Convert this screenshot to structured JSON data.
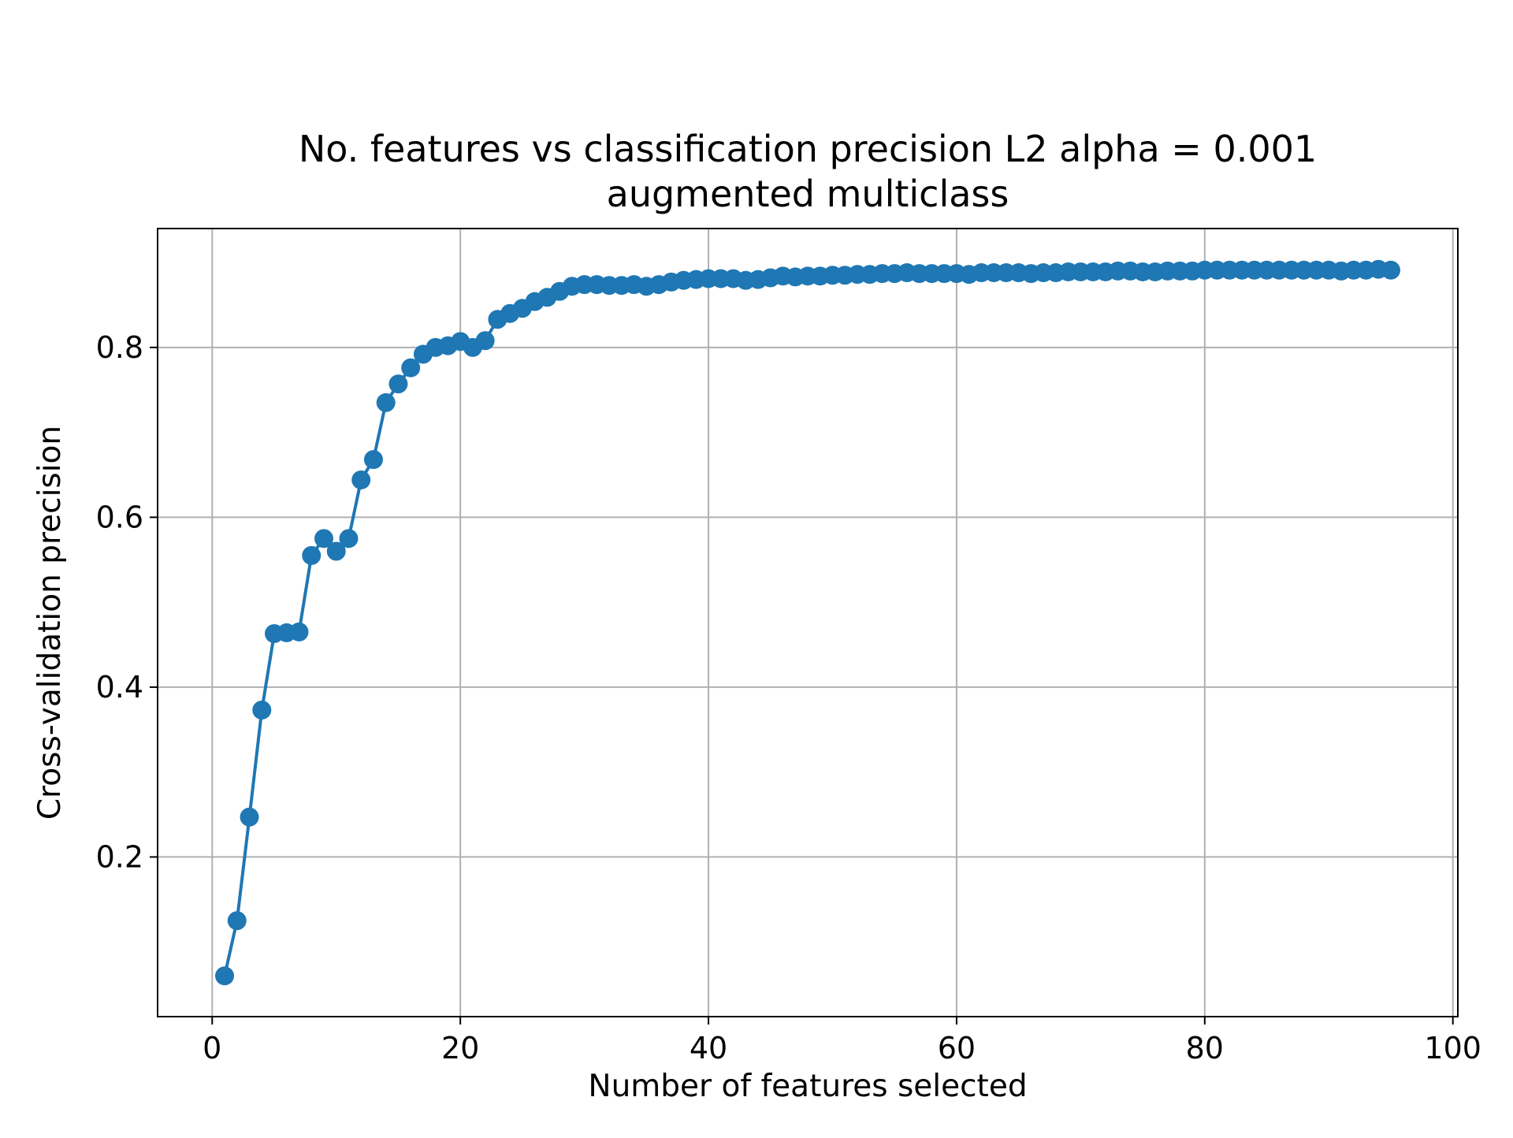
{
  "chart_data": {
    "type": "line",
    "title": "No. features vs classification precision L2 alpha = 0.001",
    "subtitle": "augmented multiclass",
    "xlabel": "Number of features selected",
    "ylabel": "Cross-validation precision",
    "xlim": [
      -4.4,
      100.4
    ],
    "ylim": [
      0.012,
      0.94
    ],
    "xticks": [
      0,
      20,
      40,
      60,
      80,
      100
    ],
    "xtick_labels": [
      "0",
      "20",
      "40",
      "60",
      "80",
      "100"
    ],
    "yticks": [
      0.2,
      0.4,
      0.6,
      0.8
    ],
    "ytick_labels": [
      "0.2",
      "0.4",
      "0.6",
      "0.8"
    ],
    "grid": true,
    "marker": "circle",
    "color": "#1f77b4",
    "series": [
      {
        "x": [
          1,
          2,
          3,
          4,
          5,
          6,
          7,
          8,
          9,
          10,
          11,
          12,
          13,
          14,
          15,
          16,
          17,
          18,
          19,
          20,
          21,
          22,
          23,
          24,
          25,
          26,
          27,
          28,
          29,
          30,
          31,
          32,
          33,
          34,
          35,
          36,
          37,
          38,
          39,
          40,
          41,
          42,
          43,
          44,
          45,
          46,
          47,
          48,
          49,
          50,
          51,
          52,
          53,
          54,
          55,
          56,
          57,
          58,
          59,
          60,
          61,
          62,
          63,
          64,
          65,
          66,
          67,
          68,
          69,
          70,
          71,
          72,
          73,
          74,
          75,
          76,
          77,
          78,
          79,
          80,
          81,
          82,
          83,
          84,
          85,
          86,
          87,
          88,
          89,
          90,
          91,
          92,
          93,
          94,
          95
        ],
        "values": [
          0.06,
          0.125,
          0.247,
          0.373,
          0.463,
          0.464,
          0.465,
          0.555,
          0.575,
          0.56,
          0.575,
          0.644,
          0.668,
          0.735,
          0.757,
          0.776,
          0.792,
          0.8,
          0.802,
          0.807,
          0.8,
          0.808,
          0.833,
          0.84,
          0.846,
          0.854,
          0.859,
          0.866,
          0.872,
          0.874,
          0.874,
          0.873,
          0.873,
          0.874,
          0.872,
          0.874,
          0.877,
          0.879,
          0.88,
          0.881,
          0.881,
          0.881,
          0.879,
          0.88,
          0.882,
          0.884,
          0.883,
          0.884,
          0.884,
          0.885,
          0.885,
          0.886,
          0.886,
          0.887,
          0.887,
          0.888,
          0.887,
          0.887,
          0.887,
          0.887,
          0.886,
          0.888,
          0.888,
          0.888,
          0.888,
          0.887,
          0.888,
          0.888,
          0.889,
          0.889,
          0.889,
          0.889,
          0.89,
          0.89,
          0.889,
          0.889,
          0.89,
          0.89,
          0.89,
          0.891,
          0.891,
          0.891,
          0.891,
          0.891,
          0.891,
          0.891,
          0.891,
          0.891,
          0.891,
          0.891,
          0.89,
          0.891,
          0.891,
          0.892,
          0.891
        ]
      }
    ]
  }
}
